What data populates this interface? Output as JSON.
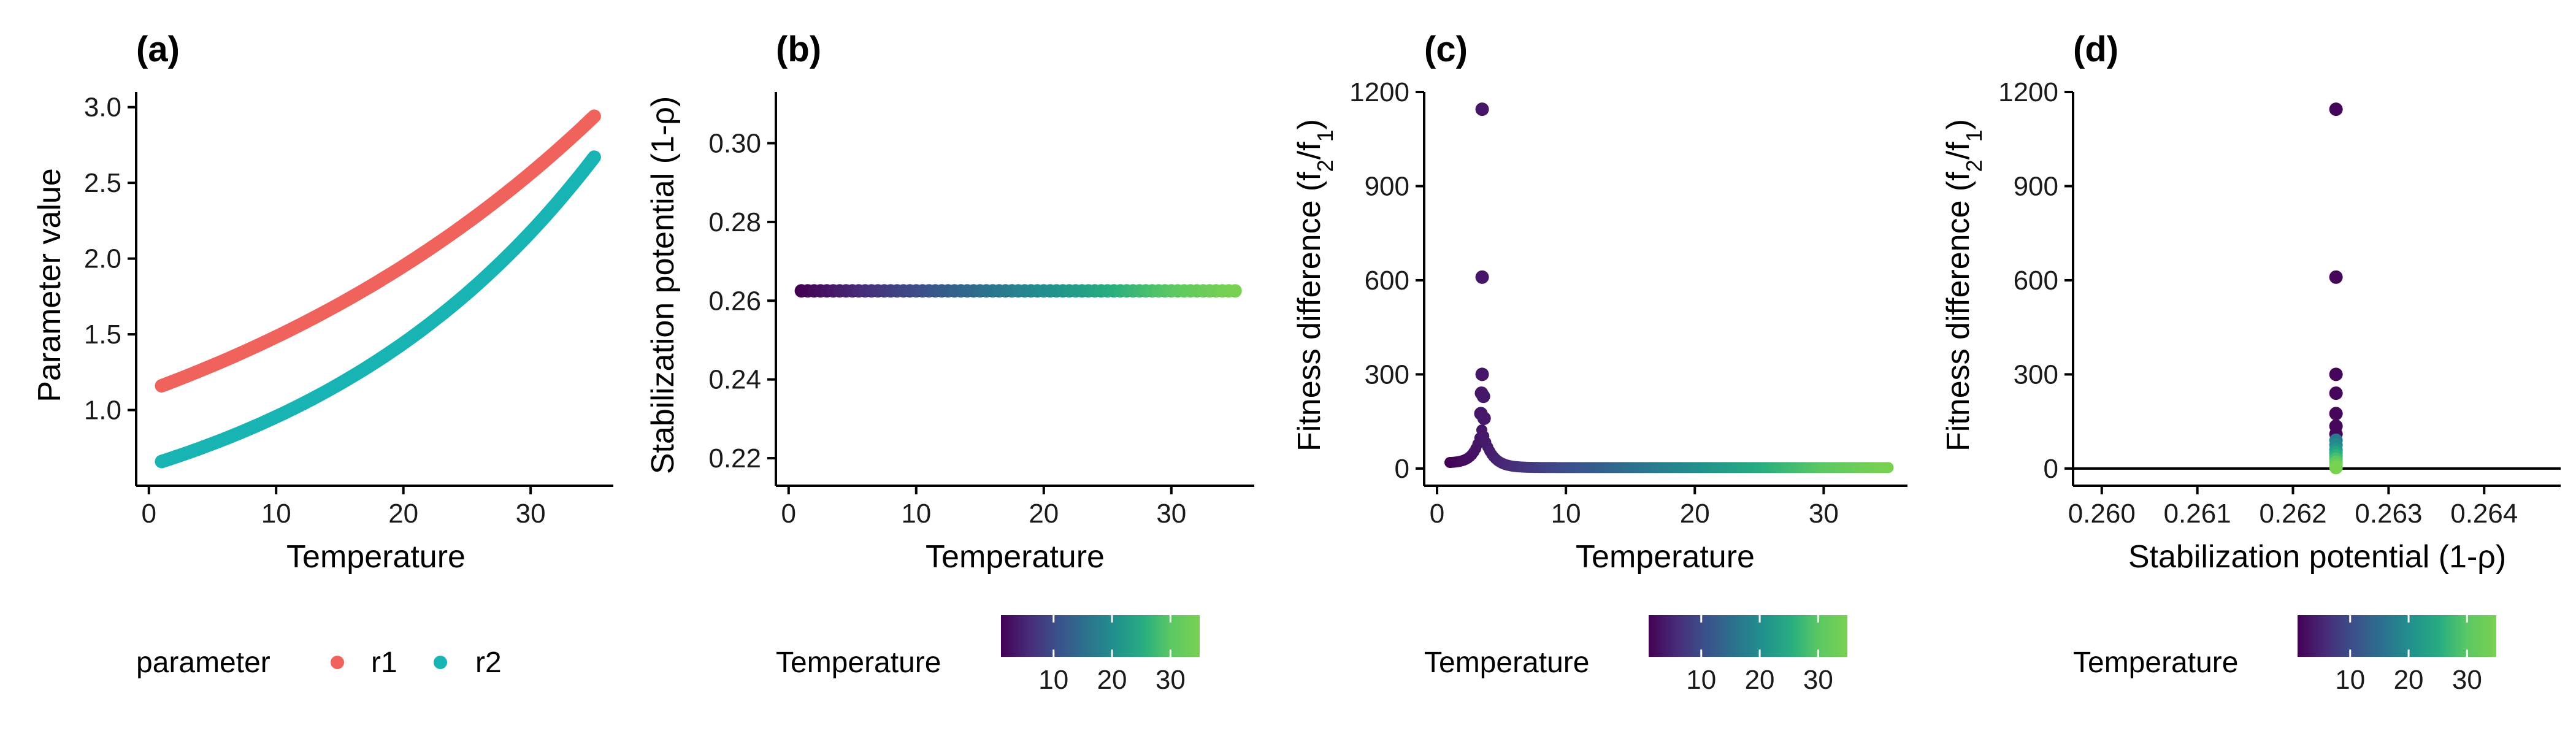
{
  "colors": {
    "r1": "#F0625C",
    "r2": "#18B4B4",
    "viridis": [
      "#440154",
      "#472c7a",
      "#3b518b",
      "#2c718e",
      "#21908d",
      "#27ad81",
      "#5cc863",
      "#79d151"
    ]
  },
  "legend": {
    "parameter_title": "parameter",
    "parameter_items": [
      "r1",
      "r2"
    ],
    "colorbar_title": "Temperature",
    "colorbar_ticks": [
      "10",
      "20",
      "30"
    ]
  },
  "chart_data": [
    {
      "panel": "(a)",
      "type": "line",
      "xlabel": "Temperature",
      "ylabel": "Parameter value",
      "xlim": [
        -1,
        36.5
      ],
      "ylim": [
        0.5,
        3.1
      ],
      "xticks": [
        0,
        10,
        20,
        30
      ],
      "yticks": [
        1.0,
        1.5,
        2.0,
        2.5,
        3.0
      ],
      "series": [
        {
          "name": "r1",
          "x_range": [
            1,
            35
          ],
          "start": 1.16,
          "end": 2.94
        },
        {
          "name": "r2",
          "x_range": [
            1,
            35
          ],
          "start": 0.66,
          "end": 2.67
        }
      ]
    },
    {
      "panel": "(b)",
      "type": "line",
      "xlabel": "Temperature",
      "ylabel": "Stabilization potential (1-ρ)",
      "xlim": [
        -1,
        36.5
      ],
      "ylim": [
        0.213,
        0.313
      ],
      "xticks": [
        0,
        10,
        20,
        30
      ],
      "yticks": [
        0.22,
        0.24,
        0.26,
        0.28,
        0.3
      ],
      "series": [
        {
          "x_range": [
            1,
            35
          ],
          "value": 0.2625
        }
      ]
    },
    {
      "panel": "(c)",
      "type": "scatter",
      "xlabel": "Temperature",
      "ylabel": "Fitness difference (f2/f1)",
      "xlim": [
        -1,
        36.5
      ],
      "ylim": [
        -55,
        1200
      ],
      "xticks": [
        0,
        10,
        20,
        30
      ],
      "yticks": [
        0,
        300,
        600,
        900,
        1200
      ],
      "peak_points": [
        {
          "x": 3.5,
          "y": 1145
        },
        {
          "x": 3.5,
          "y": 610
        },
        {
          "x": 3.5,
          "y": 300
        },
        {
          "x": 3.45,
          "y": 240
        },
        {
          "x": 3.6,
          "y": 230
        },
        {
          "x": 3.4,
          "y": 175
        },
        {
          "x": 3.65,
          "y": 160
        }
      ],
      "baseline_range": [
        1,
        35
      ],
      "baseline_value": 3
    },
    {
      "panel": "(d)",
      "type": "scatter",
      "xlabel": "Stabilization potential (1-ρ)",
      "ylabel": "Fitness difference (f2/f1)",
      "xlim": [
        0.2597,
        0.2648
      ],
      "ylim": [
        -55,
        1200
      ],
      "xticks": [
        0.26,
        0.261,
        0.262,
        0.263,
        0.264
      ],
      "xtick_labels": [
        "0.260",
        "0.261",
        "0.262",
        "0.263",
        "0.264"
      ],
      "yticks": [
        0,
        300,
        600,
        900,
        1200
      ],
      "x_value": 0.26245,
      "y_values": [
        1145,
        610,
        300,
        240,
        175,
        135,
        110,
        90,
        75,
        60,
        50,
        40,
        30,
        20,
        10,
        3
      ],
      "hline": 0
    }
  ]
}
